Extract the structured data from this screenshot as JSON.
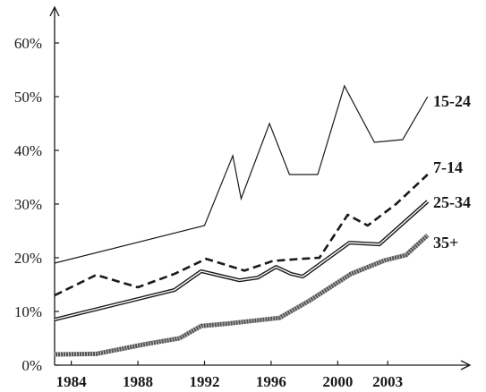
{
  "chart_data": {
    "type": "line",
    "title": "",
    "xlabel": "",
    "ylabel": "",
    "xlim": [
      1983,
      2006
    ],
    "ylim": [
      0,
      60
    ],
    "y_unit": "%",
    "grid": false,
    "legend": "inline labels at right end of each line",
    "x_ticks": [
      {
        "value": 1984,
        "label": "1984"
      },
      {
        "value": 1988,
        "label": "1988"
      },
      {
        "value": 1992,
        "label": "1992"
      },
      {
        "value": 1996,
        "label": "1996"
      },
      {
        "value": 2000,
        "label": "2000"
      },
      {
        "value": 2003,
        "label": "2003"
      }
    ],
    "y_ticks": [
      {
        "value": 0,
        "label": "0%"
      },
      {
        "value": 10,
        "label": "10%"
      },
      {
        "value": 20,
        "label": "20%"
      },
      {
        "value": 30,
        "label": "30%"
      },
      {
        "value": 40,
        "label": "40%"
      },
      {
        "value": 50,
        "label": "50%"
      },
      {
        "value": 60,
        "label": "60%"
      }
    ],
    "series": [
      {
        "name": "15-24",
        "style": "solid",
        "color": "#1a1a1a",
        "points": [
          [
            1983,
            19.0
          ],
          [
            1992,
            26.0
          ],
          [
            1993.7,
            39.0
          ],
          [
            1994.2,
            31.0
          ],
          [
            1995.9,
            45.0
          ],
          [
            1997.1,
            35.5
          ],
          [
            1998.8,
            35.5
          ],
          [
            2000.4,
            52.0
          ],
          [
            2002.2,
            41.5
          ],
          [
            2003.9,
            42.0
          ],
          [
            2005.4,
            50.0
          ]
        ]
      },
      {
        "name": "7-14",
        "style": "dashed",
        "color": "#1a1a1a",
        "points": [
          [
            1983,
            13.0
          ],
          [
            1985.5,
            16.8
          ],
          [
            1988,
            14.5
          ],
          [
            1990.2,
            17.0
          ],
          [
            1992.1,
            19.8
          ],
          [
            1994.4,
            17.6
          ],
          [
            1996.1,
            19.4
          ],
          [
            1997.8,
            19.8
          ],
          [
            1998.9,
            20.0
          ],
          [
            2000.6,
            28.0
          ],
          [
            2001.8,
            26.0
          ],
          [
            2003.5,
            30.0
          ],
          [
            2005.4,
            35.5
          ]
        ]
      },
      {
        "name": "25-34",
        "style": "double",
        "color": "#1a1a1a",
        "points": [
          [
            1983,
            8.5
          ],
          [
            1990.2,
            14.0
          ],
          [
            1991.8,
            17.5
          ],
          [
            1994.1,
            15.8
          ],
          [
            1995.2,
            16.3
          ],
          [
            1996.3,
            18.3
          ],
          [
            1997.2,
            17.0
          ],
          [
            1997.9,
            16.5
          ],
          [
            2000.7,
            22.8
          ],
          [
            2002.5,
            22.5
          ],
          [
            2005.4,
            30.5
          ]
        ]
      },
      {
        "name": "35+",
        "style": "hatched",
        "color": "#555555",
        "points": [
          [
            1983,
            2.0
          ],
          [
            1985.5,
            2.1
          ],
          [
            1988.6,
            4.0
          ],
          [
            1990.5,
            5.0
          ],
          [
            1991.8,
            7.3
          ],
          [
            1993.3,
            7.7
          ],
          [
            1996.5,
            8.8
          ],
          [
            1998.3,
            12.0
          ],
          [
            2000.8,
            17.0
          ],
          [
            2002.8,
            19.5
          ],
          [
            2004.1,
            20.5
          ],
          [
            2005.4,
            24.2
          ]
        ]
      }
    ]
  }
}
